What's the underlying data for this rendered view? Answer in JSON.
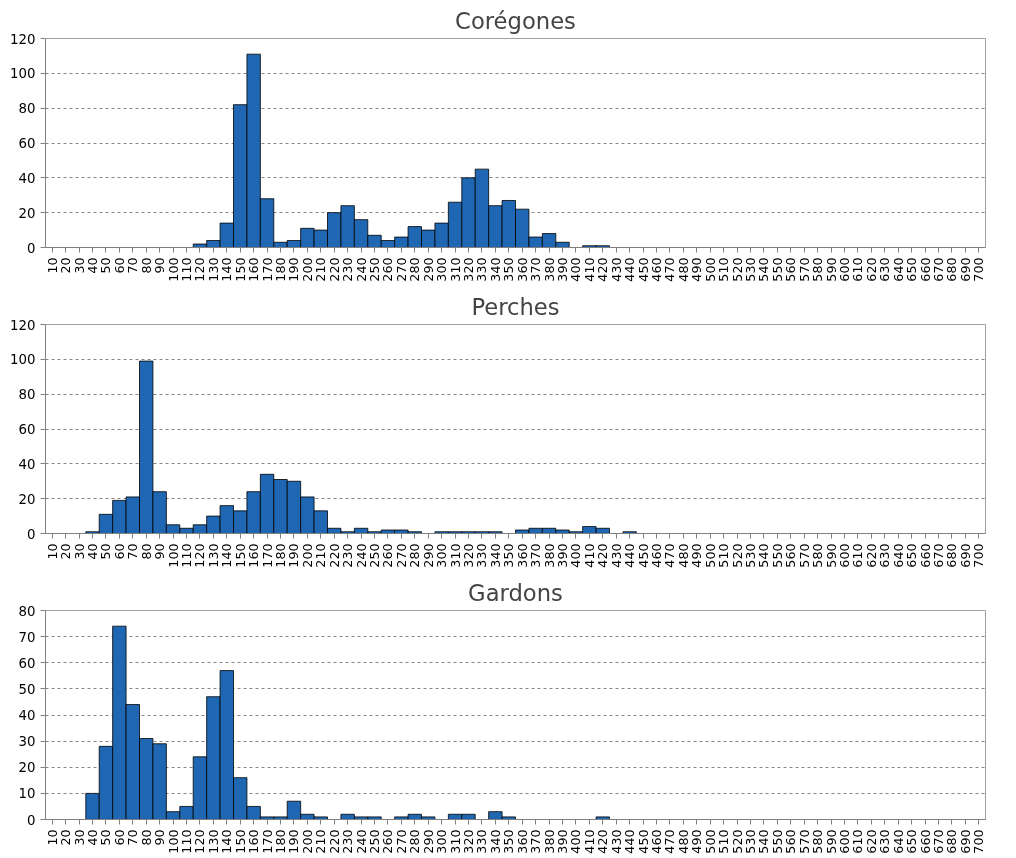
{
  "chart_data": [
    {
      "type": "bar",
      "title": "Corégones",
      "categories": [
        "10",
        "20",
        "30",
        "40",
        "50",
        "60",
        "70",
        "80",
        "90",
        "100",
        "110",
        "120",
        "130",
        "140",
        "150",
        "160",
        "170",
        "180",
        "190",
        "200",
        "210",
        "220",
        "230",
        "240",
        "250",
        "260",
        "270",
        "280",
        "290",
        "300",
        "310",
        "320",
        "330",
        "340",
        "350",
        "360",
        "370",
        "380",
        "390",
        "400",
        "410",
        "420",
        "430",
        "440",
        "450",
        "460",
        "470",
        "480",
        "490",
        "500",
        "510",
        "520",
        "530",
        "540",
        "550",
        "560",
        "570",
        "580",
        "590",
        "600",
        "610",
        "620",
        "630",
        "640",
        "650",
        "660",
        "670",
        "680",
        "690",
        "700"
      ],
      "values": [
        0,
        0,
        0,
        0,
        0,
        0,
        0,
        0,
        0,
        0,
        0,
        2,
        4,
        14,
        82,
        111,
        28,
        3,
        4,
        11,
        10,
        20,
        24,
        16,
        7,
        4,
        6,
        12,
        10,
        14,
        26,
        40,
        45,
        24,
        27,
        22,
        6,
        8,
        3,
        0,
        1,
        1,
        0,
        0,
        0,
        0,
        0,
        0,
        0,
        0,
        0,
        0,
        0,
        0,
        0,
        0,
        0,
        0,
        0,
        0,
        0,
        0,
        0,
        0,
        0,
        0,
        0,
        0,
        0,
        0
      ],
      "color": "#1f67b3",
      "ylim": [
        0,
        120
      ],
      "yticks": [
        0,
        20,
        40,
        60,
        80,
        100,
        120
      ],
      "grid": "y"
    },
    {
      "type": "bar",
      "title": "Perches",
      "categories": [
        "10",
        "20",
        "30",
        "40",
        "50",
        "60",
        "70",
        "80",
        "90",
        "100",
        "110",
        "120",
        "130",
        "140",
        "150",
        "160",
        "170",
        "180",
        "190",
        "200",
        "210",
        "220",
        "230",
        "240",
        "250",
        "260",
        "270",
        "280",
        "290",
        "300",
        "310",
        "320",
        "330",
        "340",
        "350",
        "360",
        "370",
        "380",
        "390",
        "400",
        "410",
        "420",
        "430",
        "440",
        "450",
        "460",
        "470",
        "480",
        "490",
        "500",
        "510",
        "520",
        "530",
        "540",
        "550",
        "560",
        "570",
        "580",
        "590",
        "600",
        "610",
        "620",
        "630",
        "640",
        "650",
        "660",
        "670",
        "680",
        "690",
        "700"
      ],
      "values": [
        0,
        0,
        0,
        1,
        11,
        19,
        21,
        99,
        24,
        5,
        3,
        5,
        10,
        16,
        13,
        24,
        34,
        31,
        30,
        21,
        13,
        3,
        1,
        3,
        1,
        2,
        2,
        1,
        0,
        1,
        1,
        1,
        1,
        1,
        0,
        2,
        3,
        3,
        2,
        1,
        4,
        3,
        0,
        1,
        0,
        0,
        0,
        0,
        0,
        0,
        0,
        0,
        0,
        0,
        0,
        0,
        0,
        0,
        0,
        0,
        0,
        0,
        0,
        0,
        0,
        0,
        0,
        0,
        0,
        0
      ],
      "color": "#1f67b3",
      "ylim": [
        0,
        120
      ],
      "yticks": [
        0,
        20,
        40,
        60,
        80,
        100,
        120
      ],
      "grid": "y"
    },
    {
      "type": "bar",
      "title": "Gardons",
      "categories": [
        "10",
        "20",
        "30",
        "40",
        "50",
        "60",
        "70",
        "80",
        "90",
        "100",
        "110",
        "120",
        "130",
        "140",
        "150",
        "160",
        "170",
        "180",
        "190",
        "200",
        "210",
        "220",
        "230",
        "240",
        "250",
        "260",
        "270",
        "280",
        "290",
        "300",
        "310",
        "320",
        "330",
        "340",
        "350",
        "360",
        "370",
        "380",
        "390",
        "400",
        "410",
        "420",
        "430",
        "440",
        "450",
        "460",
        "470",
        "480",
        "490",
        "500",
        "510",
        "520",
        "530",
        "540",
        "550",
        "560",
        "570",
        "580",
        "590",
        "600",
        "610",
        "620",
        "630",
        "640",
        "650",
        "660",
        "670",
        "680",
        "690",
        "700"
      ],
      "values": [
        0,
        0,
        0,
        10,
        28,
        74,
        44,
        31,
        29,
        3,
        5,
        24,
        47,
        57,
        16,
        5,
        1,
        1,
        7,
        2,
        1,
        0,
        2,
        1,
        1,
        0,
        1,
        2,
        1,
        0,
        2,
        2,
        0,
        3,
        1,
        0,
        0,
        0,
        0,
        0,
        0,
        1,
        0,
        0,
        0,
        0,
        0,
        0,
        0,
        0,
        0,
        0,
        0,
        0,
        0,
        0,
        0,
        0,
        0,
        0,
        0,
        0,
        0,
        0,
        0,
        0,
        0,
        0,
        0,
        0
      ],
      "color": "#1f67b3",
      "ylim": [
        0,
        80
      ],
      "yticks": [
        0,
        10,
        20,
        30,
        40,
        50,
        60,
        70,
        80
      ],
      "grid": "y"
    }
  ]
}
